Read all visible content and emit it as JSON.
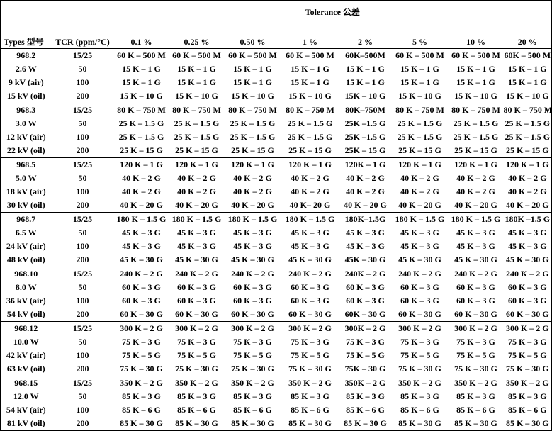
{
  "table": {
    "header": {
      "tolerance_label": "Tolerance 公差",
      "columns": [
        "Types 型号",
        "TCR (ppm/°C)",
        "0.1 %",
        "0.25 %",
        "0.50 %",
        "1 %",
        "2 %",
        "5 %",
        "10 %",
        "20 %"
      ]
    },
    "groups": [
      {
        "rows": [
          [
            "968.2",
            "15/25",
            "60 K – 500 M",
            "60 K – 500 M",
            "60 K – 500 M",
            "60 K – 500 M",
            "60K–500M",
            "60 K – 500 M",
            "60 K – 500 M",
            "60K – 500 M"
          ],
          [
            "2.6 W",
            "50",
            "15 K – 1 G",
            "15 K – 1 G",
            "15 K – 1 G",
            "15 K – 1 G",
            "15 K – 1 G",
            "15 K – 1 G",
            "15 K – 1 G",
            "15 K – 1 G"
          ],
          [
            "9 kV (air)",
            "100",
            "15 K – 1 G",
            "15 K – 1 G",
            "15 K – 1 G",
            "15 K – 1 G",
            "15 K – 1 G",
            "15 K – 1 G",
            "15 K – 1 G",
            "15 K – 1 G"
          ],
          [
            "15 kV (oil)",
            "200",
            "15 K – 10 G",
            "15 K – 10 G",
            "15 K – 10 G",
            "15 K – 10 G",
            "15K – 10 G",
            "15 K – 10 G",
            "15 K – 10 G",
            "15 K – 10 G"
          ]
        ]
      },
      {
        "rows": [
          [
            "968.3",
            "15/25",
            "80 K – 750 M",
            "80 K – 750 M",
            "80 K – 750 M",
            "80 K – 750 M",
            "80K–750M",
            "80 K – 750 M",
            "80 K – 750 M",
            "80 K – 750 M"
          ],
          [
            "3.0 W",
            "50",
            "25 K – 1.5 G",
            "25 K – 1.5 G",
            "25 K – 1.5 G",
            "25 K – 1.5 G",
            "25K –1.5 G",
            "25 K – 1.5 G",
            "25 K – 1.5 G",
            "25 K – 1.5 G"
          ],
          [
            "12 kV (air)",
            "100",
            "25 K – 1.5 G",
            "25 K – 1.5 G",
            "25 K – 1.5 G",
            "25 K – 1.5 G",
            "25K –1.5 G",
            "25 K – 1.5 G",
            "25 K – 1.5 G",
            "25 K – 1.5 G"
          ],
          [
            "22 kV (oil)",
            "200",
            "25 K – 15 G",
            "25 K – 15 G",
            "25 K – 15 G",
            "25 K – 15 G",
            "25K – 15 G",
            "25 K – 15 G",
            "25 K – 15 G",
            "25 K – 15 G"
          ]
        ]
      },
      {
        "rows": [
          [
            "968.5",
            "15/25",
            "120 K – 1 G",
            "120 K – 1 G",
            "120 K – 1 G",
            "120 K – 1 G",
            "120K – 1 G",
            "120 K – 1 G",
            "120 K – 1 G",
            "120 K – 1 G"
          ],
          [
            "5.0 W",
            "50",
            "40 K – 2 G",
            "40 K – 2 G",
            "40 K – 2 G",
            "40 K – 2 G",
            "40 K – 2 G",
            "40 K – 2 G",
            "40 K – 2 G",
            "40 K – 2 G"
          ],
          [
            "18 kV (air)",
            "100",
            "40 K – 2 G",
            "40 K – 2 G",
            "40 K – 2 G",
            "40 K – 2 G",
            "40 K – 2 G",
            "40 K – 2 G",
            "40 K – 2 G",
            "40 K – 2 G"
          ],
          [
            "30 kV (oil)",
            "200",
            "40 K – 20 G",
            "40 K – 20 G",
            "40 K – 20 G",
            "40 K– 20 G",
            "40 K – 20 G",
            "40 K – 20 G",
            "40 K – 20 G",
            "40 K – 20 G"
          ]
        ]
      },
      {
        "rows": [
          [
            "968.7",
            "15/25",
            "180 K – 1.5 G",
            "180 K – 1.5 G",
            "180 K – 1.5 G",
            "180 K – 1.5 G",
            "180K–1.5G",
            "180 K – 1.5 G",
            "180 K – 1.5 G",
            "180K –1.5 G"
          ],
          [
            "6.5 W",
            "50",
            "45 K – 3 G",
            "45 K – 3 G",
            "45 K – 3 G",
            "45 K – 3 G",
            "45 K – 3 G",
            "45 K – 3 G",
            "45 K – 3 G",
            "45 K – 3 G"
          ],
          [
            "24 kV (air)",
            "100",
            "45 K – 3 G",
            "45 K – 3 G",
            "45 K – 3 G",
            "45 K – 3 G",
            "45 K – 3 G",
            "45 K – 3 G",
            "45 K – 3 G",
            "45 K – 3 G"
          ],
          [
            "48 kV (oil)",
            "200",
            "45 K – 30 G",
            "45 K – 30 G",
            "45 K – 30 G",
            "45 K – 30 G",
            "45K – 30 G",
            "45 K – 30 G",
            "45 K – 30 G",
            "45 K – 30 G"
          ]
        ]
      },
      {
        "rows": [
          [
            "968.10",
            "15/25",
            "240 K – 2 G",
            "240 K – 2 G",
            "240 K – 2 G",
            "240 K – 2 G",
            "240K – 2 G",
            "240 K – 2 G",
            "240 K – 2 G",
            "240 K – 2 G"
          ],
          [
            "8.0 W",
            "50",
            "60 K – 3 G",
            "60 K – 3 G",
            "60 K – 3 G",
            "60 K – 3 G",
            "60 K – 3 G",
            "60 K – 3 G",
            "60 K – 3 G",
            "60 K – 3 G"
          ],
          [
            "36 kV (air)",
            "100",
            "60 K – 3 G",
            "60 K – 3 G",
            "60 K – 3 G",
            "60 K – 3 G",
            "60 K – 3 G",
            "60 K – 3 G",
            "60 K – 3 G",
            "60 K – 3 G"
          ],
          [
            "54 kV (oil)",
            "200",
            "60 K – 30 G",
            "60 K – 30 G",
            "60 K – 30 G",
            "60 K – 30 G",
            "60K – 30 G",
            "60 K – 30 G",
            "60 K – 30 G",
            "60 K – 30 G"
          ]
        ]
      },
      {
        "rows": [
          [
            "968.12",
            "15/25",
            "300 K – 2 G",
            "300 K – 2 G",
            "300 K – 2 G",
            "300 K – 2 G",
            "300K – 2 G",
            "300 K – 2 G",
            "300 K – 2 G",
            "300 K – 2 G"
          ],
          [
            "10.0 W",
            "50",
            "75 K – 3 G",
            "75 K – 3 G",
            "75 K – 3 G",
            "75 K – 3 G",
            "75 K – 3 G",
            "75 K – 3 G",
            "75 K – 3 G",
            "75 K – 3 G"
          ],
          [
            "42 kV (air)",
            "100",
            "75 K – 5 G",
            "75 K – 5 G",
            "75 K – 5 G",
            "75 K – 5 G",
            "75 K – 5 G",
            "75 K – 5 G",
            "75 K – 5 G",
            "75 K – 5 G"
          ],
          [
            "63 kV (oil)",
            "200",
            "75 K – 30 G",
            "75 K – 30 G",
            "75 K – 30 G",
            "75 K – 30 G",
            "75K – 30 G",
            "75 K – 30 G",
            "75 K – 30 G",
            "75 K – 30 G"
          ]
        ]
      },
      {
        "rows": [
          [
            "968.15",
            "15/25",
            "350 K – 2 G",
            "350 K – 2 G",
            "350 K – 2 G",
            "350 K – 2 G",
            "350K – 2 G",
            "350 K – 2 G",
            "350 K – 2 G",
            "350 K – 2 G"
          ],
          [
            "12.0 W",
            "50",
            "85 K – 3 G",
            "85 K – 3 G",
            "85 K – 3 G",
            "85 K – 3 G",
            "85 K – 3 G",
            "85 K – 3 G",
            "85 K – 3 G",
            "85 K – 3 G"
          ],
          [
            "54 kV (air)",
            "100",
            "85 K – 6 G",
            "85 K – 6 G",
            "85 K – 6 G",
            "85 K – 6 G",
            "85 K – 6 G",
            "85 K – 6 G",
            "85 K – 6 G",
            "85 K – 6 G"
          ],
          [
            "81 kV (oil)",
            "200",
            "85 K – 30 G",
            "85 K – 30 G",
            "85 K – 30 G",
            "85 K – 30 G",
            "85 K – 30 G",
            "85 K – 30 G",
            "85 K – 30 G",
            "85 K – 30 G"
          ]
        ]
      }
    ]
  }
}
